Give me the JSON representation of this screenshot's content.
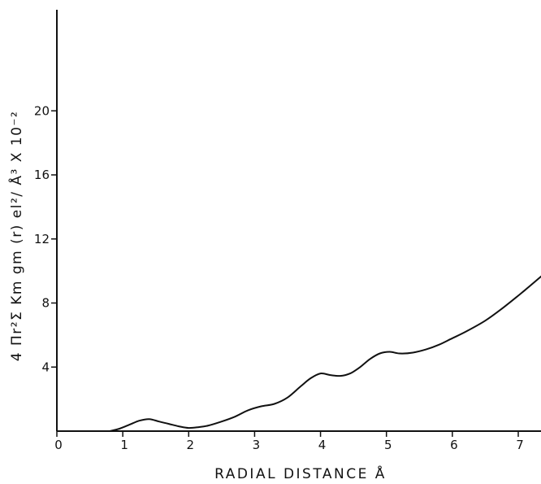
{
  "chart_data": {
    "type": "line",
    "xlabel": "RADIAL DISTANCE Å",
    "ylabel": "4 Πr²Σ Km gm (r)   el²/ Å³ X 10⁻²",
    "xlim": [
      0,
      7.5
    ],
    "ylim": [
      0,
      24
    ],
    "x_ticks": [
      "0",
      "1",
      "2",
      "3",
      "4",
      "5",
      "6",
      "7"
    ],
    "y_ticks": [
      "4",
      "8",
      "12",
      "16",
      "20"
    ],
    "grid": false,
    "series": [
      {
        "x": [
          0.8,
          0.95,
          1.1,
          1.25,
          1.4,
          1.55,
          1.7,
          1.85,
          2.0,
          2.15,
          2.3,
          2.5,
          2.7,
          2.9,
          3.1,
          3.3,
          3.5,
          3.7,
          3.85,
          4.0,
          4.15,
          4.3,
          4.45,
          4.6,
          4.75,
          4.9,
          5.05,
          5.2,
          5.4,
          5.6,
          5.8,
          6.0,
          6.2,
          6.5,
          6.8,
          7.1,
          7.5
        ],
        "y": [
          0.0,
          0.15,
          0.4,
          0.65,
          0.75,
          0.6,
          0.45,
          0.3,
          0.2,
          0.25,
          0.35,
          0.6,
          0.9,
          1.3,
          1.55,
          1.7,
          2.1,
          2.8,
          3.3,
          3.6,
          3.5,
          3.45,
          3.6,
          4.0,
          4.5,
          4.85,
          4.95,
          4.85,
          4.9,
          5.1,
          5.4,
          5.8,
          6.2,
          6.9,
          7.8,
          8.8,
          10.2
        ]
      }
    ]
  }
}
